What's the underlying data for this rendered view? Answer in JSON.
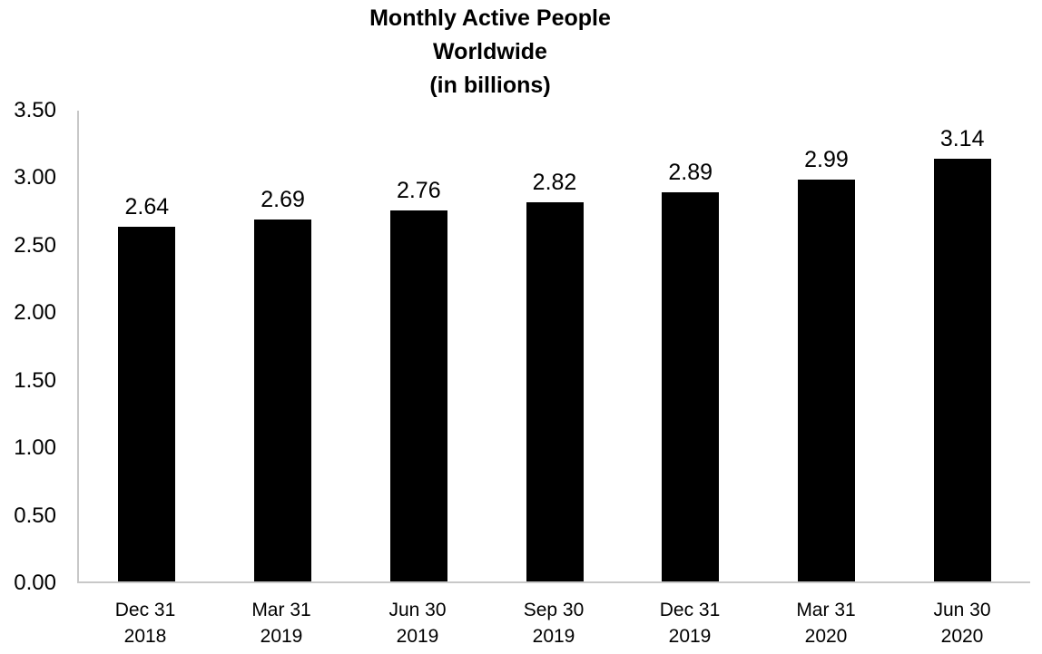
{
  "chart_data": {
    "type": "bar",
    "title": "Monthly Active People Worldwide (in billions)",
    "title_lines": [
      "Monthly Active People",
      "Worldwide",
      "(in billions)"
    ],
    "categories": [
      [
        "Dec 31",
        "2018"
      ],
      [
        "Mar 31",
        "2019"
      ],
      [
        "Jun 30",
        "2019"
      ],
      [
        "Sep 30",
        "2019"
      ],
      [
        "Dec 31",
        "2019"
      ],
      [
        "Mar 31",
        "2020"
      ],
      [
        "Jun 30",
        "2020"
      ]
    ],
    "values": [
      2.64,
      2.69,
      2.76,
      2.82,
      2.89,
      2.99,
      3.14
    ],
    "data_labels": [
      "2.64",
      "2.69",
      "2.76",
      "2.82",
      "2.89",
      "2.99",
      "3.14"
    ],
    "xlabel": "",
    "ylabel": "",
    "ylim": [
      0,
      3.5
    ],
    "ytick_step": 0.5,
    "ytick_labels": [
      "0.00",
      "0.50",
      "1.00",
      "1.50",
      "2.00",
      "2.50",
      "3.00",
      "3.50"
    ],
    "bar_color": "#000000",
    "axis_color": "#c8c8c8",
    "grid": false,
    "legend": "none"
  }
}
